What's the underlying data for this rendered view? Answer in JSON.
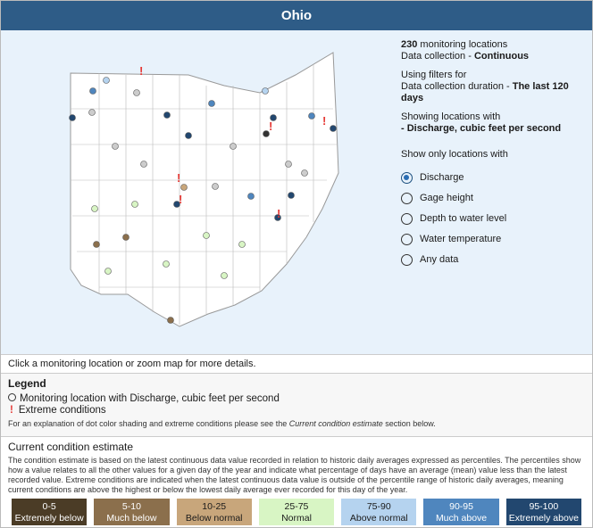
{
  "header": {
    "title": "Ohio"
  },
  "info": {
    "count": "230",
    "count_text": "monitoring locations",
    "collection_label": "Data collection - ",
    "collection_value": "Continuous",
    "filter_intro": "Using filters for",
    "duration_label": "Data collection duration - ",
    "duration_value": "The last 120 days",
    "showing_intro": "Showing locations with",
    "showing_value": "- Discharge, cubic feet per second"
  },
  "filter": {
    "title": "Show only locations with",
    "options": [
      "Discharge",
      "Gage height",
      "Depth to water level",
      "Water temperature",
      "Any data"
    ]
  },
  "hint": "Click a monitoring location or zoom map for more details.",
  "legend": {
    "title": "Legend",
    "items": [
      "Monitoring location with Discharge, cubic feet per second",
      "Extreme conditions"
    ],
    "note_before": "For an explanation of dot color shading and extreme conditions please see the ",
    "note_link": "Current condition estimate",
    "note_after": " section below."
  },
  "condition": {
    "title": "Current condition estimate",
    "description": "The condition estimate is based on the latest continuous data value recorded in relation to historic daily averages expressed as percentiles. The percentiles show how a value relates to all the other values for a given day of the year and indicate what percentage of days have an average (mean) value less than the latest recorded value. Extreme conditions are indicated when the latest continuous data value is outside of the percentile range of historic daily averages, meaning current conditions are above the highest or below the lowest daily average ever recorded for this day of the year.",
    "categories": [
      {
        "range": "0-5",
        "label": "Extremely below",
        "color": "#4b3c26"
      },
      {
        "range": "5-10",
        "label": "Much below",
        "color": "#8b6f4c"
      },
      {
        "range": "10-25",
        "label": "Below normal",
        "color": "#c8a67b"
      },
      {
        "range": "25-75",
        "label": "Normal",
        "color": "#d8f5c4"
      },
      {
        "range": "75-90",
        "label": "Above normal",
        "color": "#b5d3ef"
      },
      {
        "range": "90-95",
        "label": "Much above",
        "color": "#4f86be"
      },
      {
        "range": "95-100",
        "label": "Extremely above",
        "color": "#22476f"
      }
    ]
  }
}
